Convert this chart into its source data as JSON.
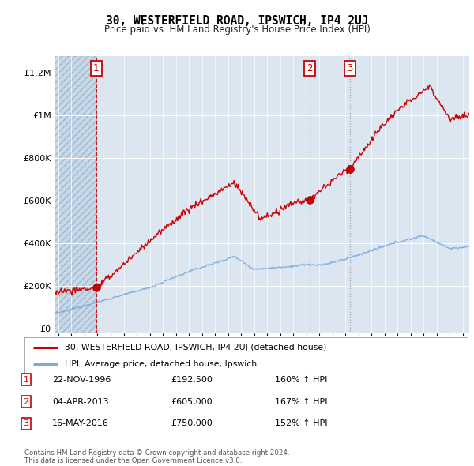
{
  "title": "30, WESTERFIELD ROAD, IPSWICH, IP4 2UJ",
  "subtitle": "Price paid vs. HM Land Registry's House Price Index (HPI)",
  "background_color": "#ffffff",
  "plot_bg_color": "#dce6f1",
  "hatch_end_year": 1997.0,
  "x_start": 1993.7,
  "x_end": 2025.5,
  "y_ticks": [
    0,
    200000,
    400000,
    600000,
    800000,
    1000000,
    1200000
  ],
  "y_tick_labels": [
    "£0",
    "£200K",
    "£400K",
    "£600K",
    "£800K",
    "£1M",
    "£1.2M"
  ],
  "ylim": [
    -20000,
    1280000
  ],
  "sale_points": [
    {
      "year": 1996.9,
      "price": 192500,
      "label": "1",
      "line_color": "#cc0000",
      "linestyle": "--"
    },
    {
      "year": 2013.25,
      "price": 605000,
      "label": "2",
      "line_color": "#999999",
      "linestyle": ":"
    },
    {
      "year": 2016.37,
      "price": 750000,
      "label": "3",
      "line_color": "#999999",
      "linestyle": ":"
    }
  ],
  "sale_color": "#cc0000",
  "hpi_color": "#7aaadd",
  "legend_label_red": "30, WESTERFIELD ROAD, IPSWICH, IP4 2UJ (detached house)",
  "legend_label_blue": "HPI: Average price, detached house, Ipswich",
  "table_rows": [
    {
      "num": "1",
      "date": "22-NOV-1996",
      "price": "£192,500",
      "change": "160% ↑ HPI"
    },
    {
      "num": "2",
      "date": "04-APR-2013",
      "price": "£605,000",
      "change": "167% ↑ HPI"
    },
    {
      "num": "3",
      "date": "16-MAY-2016",
      "price": "£750,000",
      "change": "152% ↑ HPI"
    }
  ],
  "footer": "Contains HM Land Registry data © Crown copyright and database right 2024.\nThis data is licensed under the Open Government Licence v3.0.",
  "x_tick_years": [
    1994,
    1995,
    1996,
    1997,
    1998,
    1999,
    2000,
    2001,
    2002,
    2003,
    2004,
    2005,
    2006,
    2007,
    2008,
    2009,
    2010,
    2011,
    2012,
    2013,
    2014,
    2015,
    2016,
    2017,
    2018,
    2019,
    2020,
    2021,
    2022,
    2023,
    2024,
    2025
  ]
}
